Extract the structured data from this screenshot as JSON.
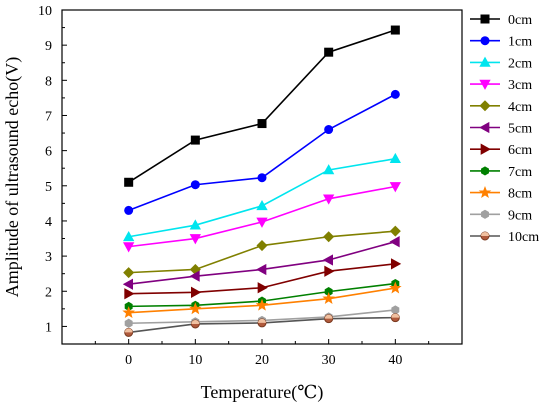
{
  "chart_data": {
    "type": "line",
    "xlabel": "Temperature(℃)",
    "ylabel": "Amplitude of ultrasound echo(V)",
    "x": [
      0,
      10,
      20,
      30,
      40
    ],
    "xlim": [
      -10,
      50
    ],
    "ylim": [
      0.5,
      10
    ],
    "xticks": [
      0,
      10,
      20,
      30,
      40
    ],
    "yticks": [
      1,
      2,
      3,
      4,
      5,
      6,
      7,
      8,
      9,
      10
    ],
    "grid": false,
    "legend_position": "right",
    "series": [
      {
        "name": "0cm",
        "color": "#000000",
        "marker": "square",
        "values": [
          5.1,
          6.3,
          6.77,
          8.8,
          9.43
        ]
      },
      {
        "name": "1cm",
        "color": "#0000ff",
        "marker": "circle",
        "values": [
          4.3,
          5.03,
          5.23,
          6.6,
          7.6
        ]
      },
      {
        "name": "2cm",
        "color": "#00e5ee",
        "marker": "triangle-up",
        "values": [
          3.55,
          3.88,
          4.43,
          5.45,
          5.77
        ]
      },
      {
        "name": "3cm",
        "color": "#ff00ff",
        "marker": "triangle-down",
        "values": [
          3.27,
          3.5,
          3.97,
          4.63,
          4.98
        ]
      },
      {
        "name": "4cm",
        "color": "#808000",
        "marker": "diamond",
        "values": [
          2.53,
          2.62,
          3.3,
          3.55,
          3.71
        ]
      },
      {
        "name": "5cm",
        "color": "#800080",
        "marker": "triangle-left",
        "values": [
          2.2,
          2.43,
          2.62,
          2.89,
          3.41
        ]
      },
      {
        "name": "6cm",
        "color": "#800000",
        "marker": "triangle-right",
        "values": [
          1.93,
          1.97,
          2.1,
          2.57,
          2.78
        ]
      },
      {
        "name": "7cm",
        "color": "#008000",
        "marker": "hexagon",
        "values": [
          1.57,
          1.6,
          1.72,
          1.99,
          2.22
        ]
      },
      {
        "name": "8cm",
        "color": "#ff8000",
        "marker": "star",
        "values": [
          1.39,
          1.5,
          1.6,
          1.79,
          2.09
        ]
      },
      {
        "name": "9cm",
        "color": "#a0a0a0",
        "marker": "hexagon",
        "values": [
          1.09,
          1.13,
          1.17,
          1.27,
          1.47
        ]
      },
      {
        "name": "10cm",
        "color": "#555555",
        "marker": "circle-half",
        "values": [
          0.83,
          1.07,
          1.1,
          1.22,
          1.25
        ]
      }
    ]
  }
}
